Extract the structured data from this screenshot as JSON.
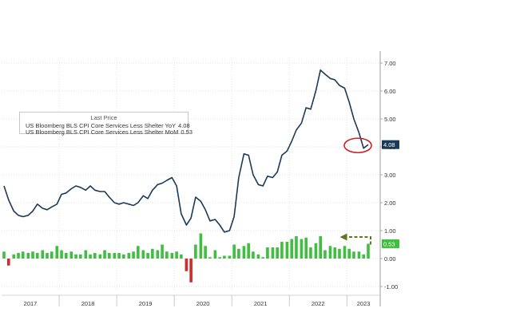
{
  "chart_data": {
    "type": "line",
    "title": "",
    "legend": {
      "title": "Last Price",
      "placement": "top-left",
      "entries": [
        {
          "label": "US Bloomberg BLS CPI Core Services Less Shelter YoY",
          "value": "4.08",
          "color": "#1c3a57"
        },
        {
          "label": "US Bloomberg BLS CPI Core Services Less Shelter MoM",
          "value": "0.53",
          "color": "#3fbf3f"
        }
      ]
    },
    "x_ticks": [
      "2017",
      "2018",
      "2019",
      "2020",
      "2021",
      "2022",
      "2023"
    ],
    "x_range": [
      2017.0,
      2023.58
    ],
    "y_ticks": [
      "7.00",
      "6.00",
      "5.00",
      "4.00",
      "3.00",
      "2.00",
      "1.00",
      "0.00",
      "-1.00"
    ],
    "y_range": [
      -1.2,
      7.2
    ],
    "grid": true,
    "series": [
      {
        "name": "US Bloomberg BLS CPI Core Services Less Shelter YoY",
        "color": "#1c3a57",
        "x": [
          2017.0,
          2017.08,
          2017.17,
          2017.25,
          2017.33,
          2017.42,
          2017.5,
          2017.58,
          2017.67,
          2017.75,
          2017.83,
          2017.92,
          2018.0,
          2018.08,
          2018.17,
          2018.25,
          2018.33,
          2018.42,
          2018.5,
          2018.58,
          2018.67,
          2018.75,
          2018.83,
          2018.92,
          2019.0,
          2019.08,
          2019.17,
          2019.25,
          2019.33,
          2019.42,
          2019.5,
          2019.58,
          2019.67,
          2019.75,
          2019.83,
          2019.92,
          2020.0,
          2020.08,
          2020.17,
          2020.25,
          2020.33,
          2020.42,
          2020.5,
          2020.58,
          2020.67,
          2020.75,
          2020.83,
          2020.92,
          2021.0,
          2021.08,
          2021.17,
          2021.25,
          2021.33,
          2021.42,
          2021.5,
          2021.58,
          2021.67,
          2021.75,
          2021.83,
          2021.92,
          2022.0,
          2022.08,
          2022.17,
          2022.25,
          2022.33,
          2022.42,
          2022.5,
          2022.58,
          2022.67,
          2022.75,
          2022.83,
          2022.92,
          2023.0,
          2023.08,
          2023.17,
          2023.25,
          2023.33
        ],
        "y": [
          2.6,
          2.1,
          1.7,
          1.55,
          1.5,
          1.55,
          1.7,
          1.95,
          1.8,
          1.75,
          1.85,
          1.95,
          2.3,
          2.35,
          2.5,
          2.6,
          2.55,
          2.45,
          2.6,
          2.45,
          2.4,
          2.4,
          2.2,
          2.0,
          1.95,
          2.0,
          1.95,
          1.9,
          2.0,
          2.25,
          2.15,
          2.45,
          2.65,
          2.7,
          2.8,
          2.9,
          2.6,
          1.6,
          1.2,
          1.45,
          2.2,
          2.05,
          1.75,
          1.35,
          1.4,
          1.2,
          0.95,
          1.0,
          1.5,
          2.9,
          3.75,
          3.7,
          3.0,
          2.65,
          2.6,
          2.95,
          2.9,
          3.1,
          3.7,
          3.85,
          4.2,
          4.6,
          4.85,
          5.4,
          5.35,
          6.0,
          6.75,
          6.6,
          6.45,
          6.4,
          6.2,
          6.1,
          5.6,
          5.0,
          4.5,
          3.95,
          4.08
        ]
      },
      {
        "name": "US Bloomberg BLS CPI Core Services Less Shelter MoM",
        "color": "#3fbf3f",
        "negative_color": "#d42a2a",
        "x": [
          2017.0,
          2017.08,
          2017.17,
          2017.25,
          2017.33,
          2017.42,
          2017.5,
          2017.58,
          2017.67,
          2017.75,
          2017.83,
          2017.92,
          2018.0,
          2018.08,
          2018.17,
          2018.25,
          2018.33,
          2018.42,
          2018.5,
          2018.58,
          2018.67,
          2018.75,
          2018.83,
          2018.92,
          2019.0,
          2019.08,
          2019.17,
          2019.25,
          2019.33,
          2019.42,
          2019.5,
          2019.58,
          2019.67,
          2019.75,
          2019.83,
          2019.92,
          2020.0,
          2020.08,
          2020.17,
          2020.25,
          2020.33,
          2020.42,
          2020.5,
          2020.58,
          2020.67,
          2020.75,
          2020.83,
          2020.92,
          2021.0,
          2021.08,
          2021.17,
          2021.25,
          2021.33,
          2021.42,
          2021.5,
          2021.58,
          2021.67,
          2021.75,
          2021.83,
          2021.92,
          2022.0,
          2022.08,
          2022.17,
          2022.25,
          2022.33,
          2022.42,
          2022.5,
          2022.58,
          2022.67,
          2022.75,
          2022.83,
          2022.92,
          2023.0,
          2023.08,
          2023.17,
          2023.25,
          2023.33
        ],
        "y": [
          0.25,
          -0.25,
          0.15,
          0.2,
          0.25,
          0.2,
          0.25,
          0.2,
          0.3,
          0.2,
          0.25,
          0.45,
          0.3,
          0.2,
          0.25,
          0.15,
          0.15,
          0.3,
          0.15,
          0.2,
          0.15,
          0.3,
          0.2,
          0.2,
          0.2,
          0.15,
          0.2,
          0.25,
          0.45,
          0.3,
          0.2,
          0.35,
          0.3,
          0.5,
          0.25,
          0.2,
          0.25,
          0.15,
          -0.45,
          -0.85,
          0.5,
          0.9,
          0.45,
          0.05,
          0.3,
          0.05,
          0.1,
          0.1,
          0.5,
          0.35,
          0.45,
          0.55,
          0.25,
          0.15,
          0.05,
          0.4,
          0.4,
          0.4,
          0.6,
          0.6,
          0.7,
          0.8,
          0.7,
          0.75,
          0.4,
          0.55,
          0.8,
          0.3,
          0.45,
          0.4,
          0.35,
          0.45,
          0.35,
          0.25,
          0.25,
          0.15,
          0.53
        ]
      }
    ],
    "annotations": [
      {
        "type": "last-value-label",
        "text": "4.08",
        "y": 4.08,
        "color": "#1c3a57"
      },
      {
        "type": "last-value-label",
        "text": "0.53",
        "y": 0.53,
        "color": "#3fbf3f"
      },
      {
        "type": "circle",
        "x": 2023.15,
        "y": 4.05,
        "color": "#d0202a"
      },
      {
        "type": "dashed-arrow",
        "x_from": 2023.33,
        "x_to": 2022.88,
        "y_top": 0.6,
        "y_bottom": 0.5,
        "color": "#5a7a1e"
      }
    ]
  }
}
